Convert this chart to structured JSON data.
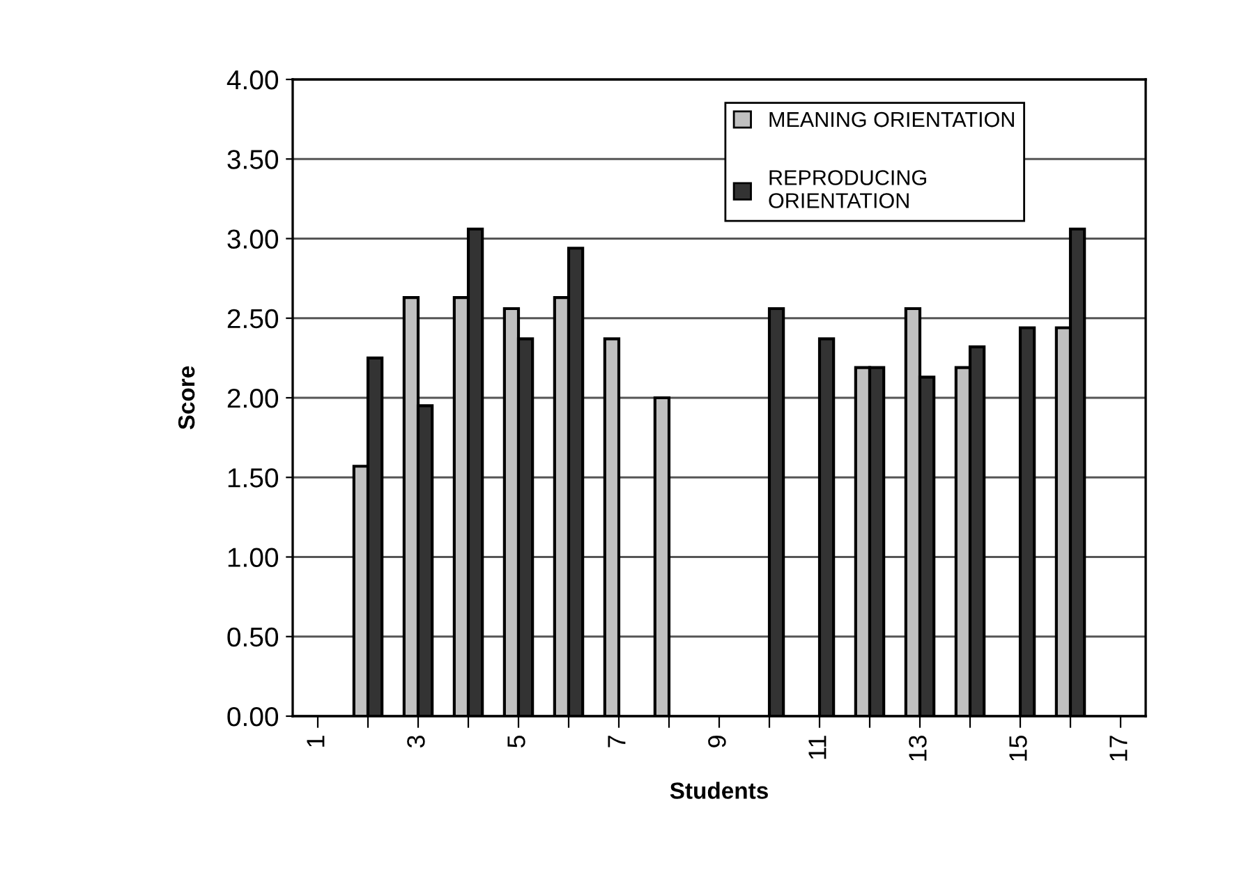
{
  "chart_data": {
    "type": "bar",
    "xlabel": "Students",
    "ylabel": "Score",
    "categories": [
      "1",
      null,
      "3",
      null,
      "5",
      null,
      "7",
      null,
      "9",
      null,
      "11",
      null,
      "13",
      null,
      "15",
      null,
      "17"
    ],
    "series": [
      {
        "name": "MEANING ORIENTATION",
        "color": "#c0c0c0",
        "values": [
          null,
          1.57,
          2.63,
          2.63,
          2.56,
          2.63,
          2.37,
          2.0,
          null,
          null,
          null,
          2.19,
          2.56,
          2.19,
          null,
          2.44,
          null
        ]
      },
      {
        "name": "REPRODUCING\nORIENTATION",
        "color": "#333333",
        "values": [
          null,
          2.25,
          1.95,
          3.06,
          2.37,
          2.94,
          null,
          null,
          null,
          2.56,
          2.37,
          2.19,
          2.13,
          2.32,
          2.44,
          3.06,
          null
        ]
      }
    ],
    "ylim": [
      0,
      4
    ],
    "yticks": [
      {
        "value": 0,
        "label": "0.00"
      },
      {
        "value": 0.5,
        "label": "0.50"
      },
      {
        "value": 1,
        "label": "1.00"
      },
      {
        "value": 1.5,
        "label": "1.50"
      },
      {
        "value": 2,
        "label": "2.00"
      },
      {
        "value": 2.5,
        "label": "2.50"
      },
      {
        "value": 3,
        "label": "3.00"
      },
      {
        "value": 3.5,
        "label": "3.50"
      },
      {
        "value": 4,
        "label": "4.00"
      }
    ],
    "grid": "y",
    "legend": "top right"
  }
}
